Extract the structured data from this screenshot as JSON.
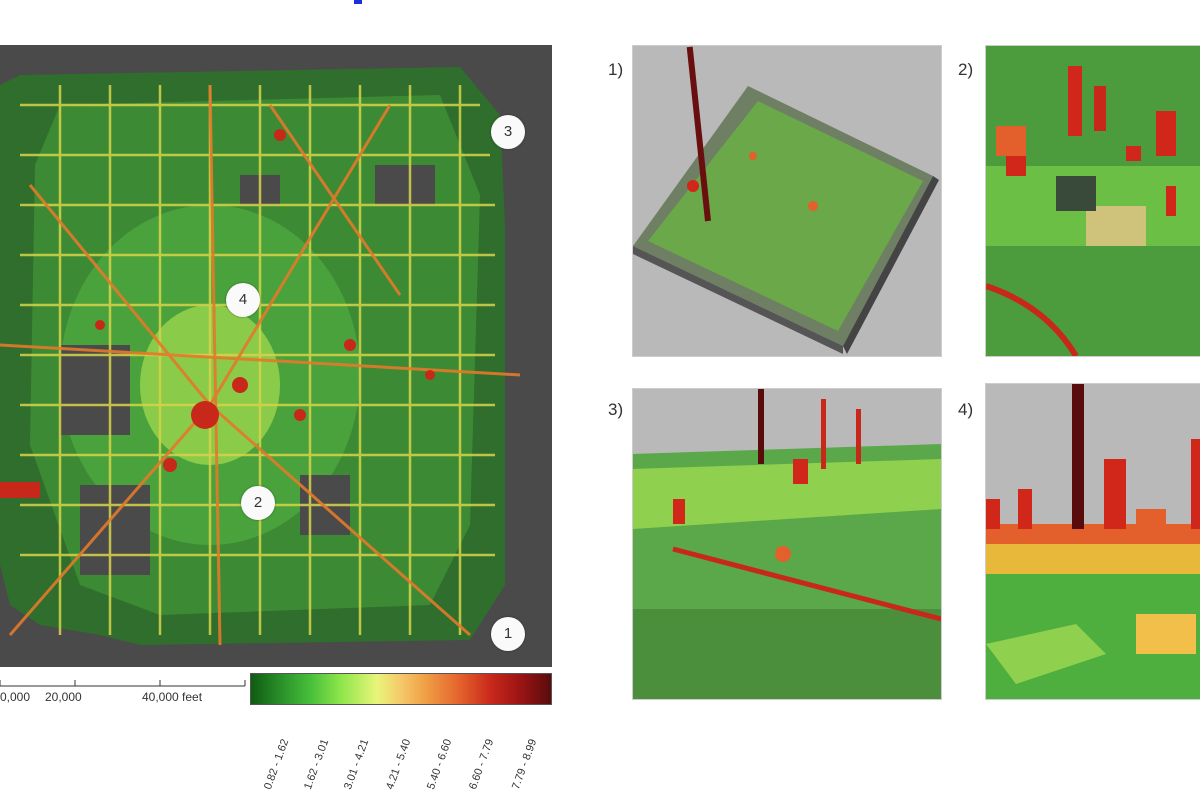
{
  "map": {
    "markers": [
      "3",
      "4",
      "2",
      "1"
    ]
  },
  "scale": {
    "labels": [
      "0,000",
      "20,000",
      "40,000 feet"
    ]
  },
  "legend": {
    "ranges": [
      "0.82 - 1.62",
      "1.62 - 3.01",
      "3.01 - 4.21",
      "4.21 - 5.40",
      "5.40 - 6.60",
      "6.60 - 7.79",
      "7.79 - 8.99"
    ]
  },
  "views": {
    "labels": [
      "1)",
      "2)",
      "3)",
      "4)"
    ]
  },
  "colors": {
    "low": "#1f7a1f",
    "mid": "#f2e05a",
    "high": "#d1261a",
    "max": "#5a0c0c",
    "background": "#4a4a4a"
  }
}
